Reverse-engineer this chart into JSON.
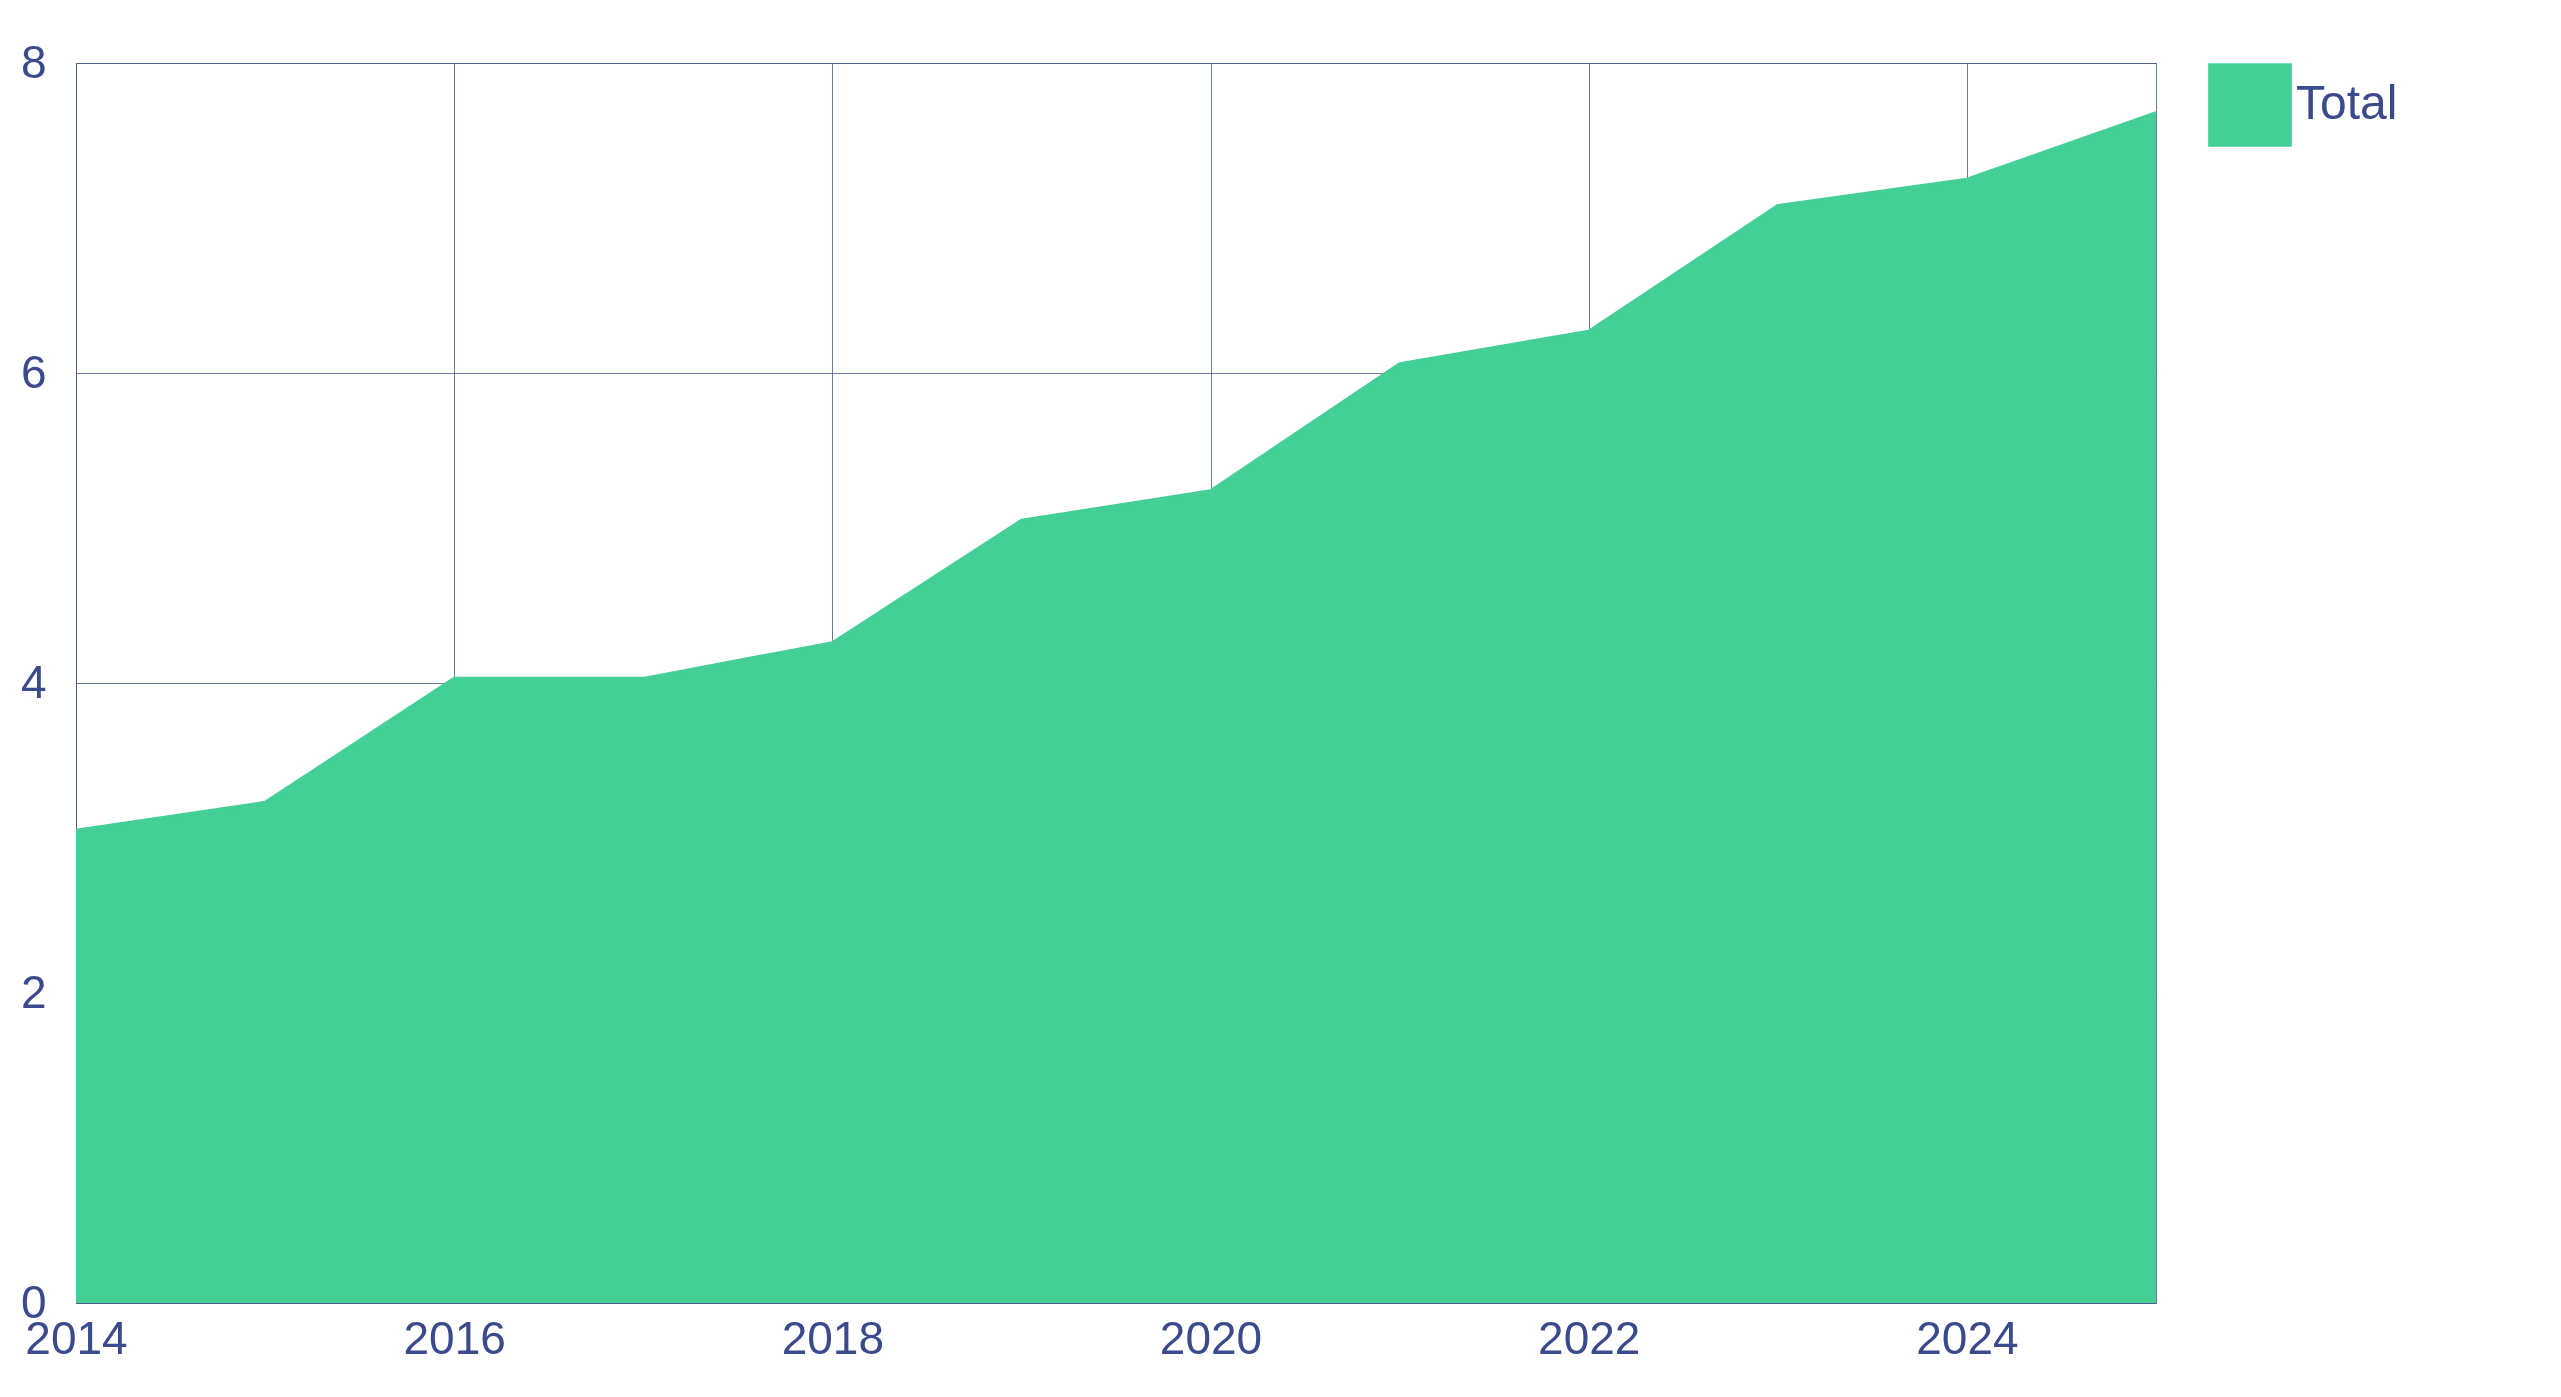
{
  "chart_data": {
    "type": "area",
    "x": [
      2014,
      2015,
      2016,
      2017,
      2018,
      2019,
      2020,
      2021,
      2022,
      2023,
      2024,
      2025
    ],
    "series": [
      {
        "name": "Total",
        "color": "#43cf95",
        "values": [
          3.05,
          3.23,
          4.03,
          4.03,
          4.26,
          5.05,
          5.24,
          6.06,
          6.27,
          7.08,
          7.25,
          7.68
        ]
      }
    ],
    "xlim": [
      2014,
      2025
    ],
    "xticks": [
      2014,
      2016,
      2018,
      2020,
      2022,
      2024
    ],
    "ylim": [
      0,
      8
    ],
    "yticks": [
      0,
      2,
      4,
      6,
      8
    ],
    "grid": true,
    "legend": "top right"
  }
}
